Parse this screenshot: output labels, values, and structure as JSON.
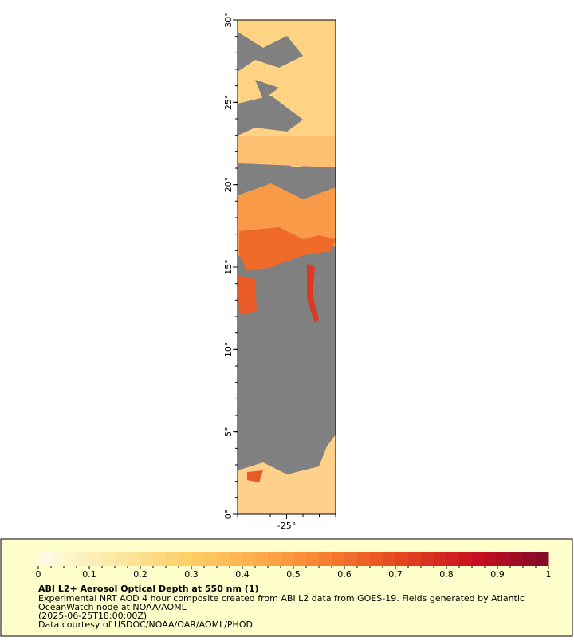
{
  "map": {
    "xlim": [
      -28,
      -22
    ],
    "ylim": [
      0,
      30
    ],
    "yticks": [
      {
        "value": 0,
        "label": "0°"
      },
      {
        "value": 5,
        "label": "5°"
      },
      {
        "value": 10,
        "label": "10°"
      },
      {
        "value": 15,
        "label": "15°"
      },
      {
        "value": 20,
        "label": "20°"
      },
      {
        "value": 25,
        "label": "25°"
      },
      {
        "value": 30,
        "label": "30°"
      }
    ],
    "xticks": [
      {
        "value": -25,
        "label": "-25°"
      }
    ],
    "minor_step": 1
  },
  "legend": {
    "range": [
      0,
      1
    ],
    "ticks": [
      0,
      0.1,
      0.2,
      0.3,
      0.4,
      0.5,
      0.6,
      0.7,
      0.8,
      0.9,
      1
    ],
    "colormap": [
      "#fffbe6",
      "#feeaa8",
      "#fed06a",
      "#fdae4b",
      "#f57c2e",
      "#e3441f",
      "#c8101f",
      "#7f0a2a"
    ],
    "steps": 40,
    "title": "ABI L2+ Aerosol Optical Depth at 550 nm (1)",
    "lines": [
      "Experimental NRT AOD 4 hour composite created from ABI L2 data from GOES-19. Fields generated by Atlantic",
      "OceanWatch node at NOAA/AOML",
      "(2025-06-25T18:00:00Z)",
      "Data courtesy of USDOC/NOAA/OAR/AOML/PHOD"
    ]
  }
}
